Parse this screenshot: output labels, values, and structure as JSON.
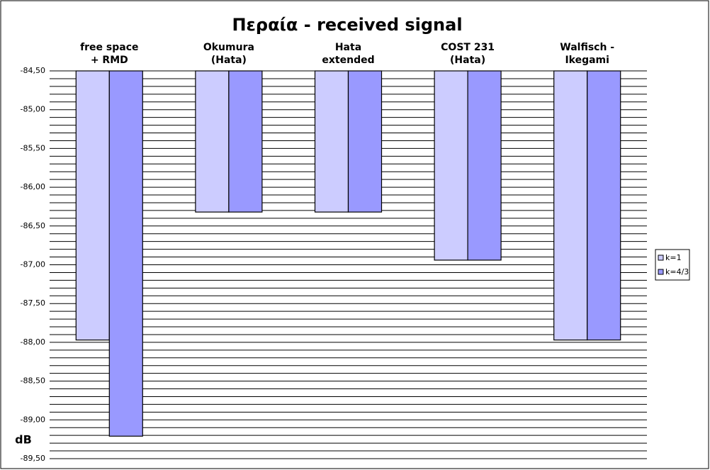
{
  "chart_data": {
    "type": "bar",
    "title": "Περαία - received signal",
    "y_label": "dB",
    "categories": [
      "free space\n+ RMD",
      "Okumura\n(Hata)",
      "Hata\nextended",
      "COST 231\n(Hata)",
      "Walfisch -\nIkegami"
    ],
    "series": [
      {
        "name": "k=1",
        "color": "#ccccff",
        "values": [
          -87.97,
          -86.32,
          -86.32,
          -86.94,
          -87.97
        ]
      },
      {
        "name": "k=4/3",
        "color": "#9999ff",
        "values": [
          -89.21,
          -86.32,
          -86.32,
          -86.94,
          -87.97
        ]
      }
    ],
    "ylim": [
      -89.5,
      -84.5
    ],
    "yticks": [
      {
        "value": -84.5,
        "label": "-84,50"
      },
      {
        "value": -85,
        "label": "-85,00"
      },
      {
        "value": -85.5,
        "label": "-85,50"
      },
      {
        "value": -86,
        "label": "-86,00"
      },
      {
        "value": -86.5,
        "label": "-86,50"
      },
      {
        "value": -87,
        "label": "-87,00"
      },
      {
        "value": -87.5,
        "label": "-87,50"
      },
      {
        "value": -88,
        "label": "-88,00"
      },
      {
        "value": -88.5,
        "label": "-88,50"
      },
      {
        "value": -89,
        "label": "-89,00"
      },
      {
        "value": -89.5,
        "label": "-89,50"
      }
    ],
    "minor_yticks": [
      -84.6,
      -84.7,
      -84.8,
      -84.9,
      -85.1,
      -85.2,
      -85.3,
      -85.4,
      -85.6,
      -85.7,
      -85.8,
      -85.9,
      -86.1,
      -86.2,
      -86.3,
      -86.4,
      -86.6,
      -86.7,
      -86.8,
      -86.9,
      -87.1,
      -87.2,
      -87.3,
      -87.4,
      -87.6,
      -87.7,
      -87.8,
      -87.9,
      -88.1,
      -88.2,
      -88.3,
      -88.4,
      -88.6,
      -88.7,
      -88.8,
      -88.9,
      -89.1,
      -89.2,
      -89.3,
      -89.4
    ],
    "grid": true,
    "legend": "right"
  }
}
